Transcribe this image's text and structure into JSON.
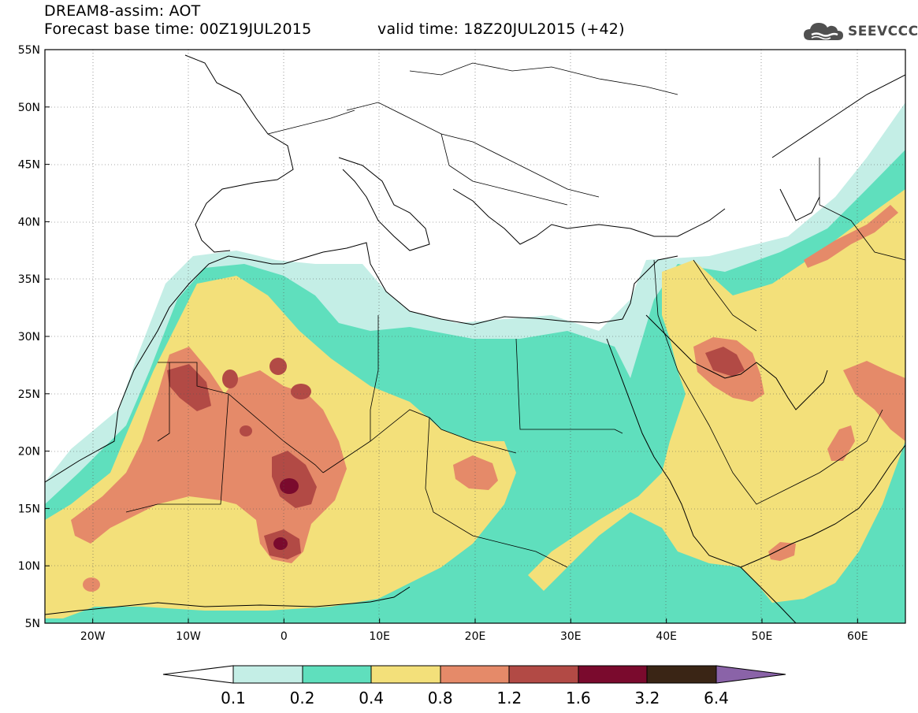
{
  "title": {
    "line1": "DREAM8-assim: AOT",
    "line2_base": "Forecast base time: 00Z19JUL2015",
    "line2_valid": "valid time: 18Z20JUL2015 (+42)"
  },
  "logo": {
    "text": "SEEVCCC",
    "icon": "cloud-icon"
  },
  "map": {
    "lat_labels": [
      "55N",
      "50N",
      "45N",
      "40N",
      "35N",
      "30N",
      "25N",
      "20N",
      "15N",
      "10N",
      "5N"
    ],
    "lon_labels": [
      "20W",
      "10W",
      "0",
      "10E",
      "20E",
      "30E",
      "40E",
      "50E",
      "60E"
    ],
    "lat_values": [
      55,
      50,
      45,
      40,
      35,
      30,
      25,
      20,
      15,
      10,
      5
    ],
    "lon_values": [
      -20,
      -10,
      0,
      10,
      20,
      30,
      40,
      50,
      60
    ],
    "extent": {
      "lon_min": -25,
      "lon_max": 65,
      "lat_min": 5,
      "lat_max": 55
    },
    "field": "AOT"
  },
  "colorbar": {
    "ticks": [
      "0.1",
      "0.2",
      "0.4",
      "0.8",
      "1.2",
      "1.6",
      "3.2",
      "6.4"
    ],
    "colors": {
      "under": "#ffffff",
      "c1": "#c4eee6",
      "c2": "#5fdfbd",
      "c3": "#f3e07a",
      "c4": "#e58a69",
      "c5": "#b24a45",
      "c6": "#7a0a2d",
      "c7": "#3a2515",
      "over": "#8a63a8"
    }
  }
}
